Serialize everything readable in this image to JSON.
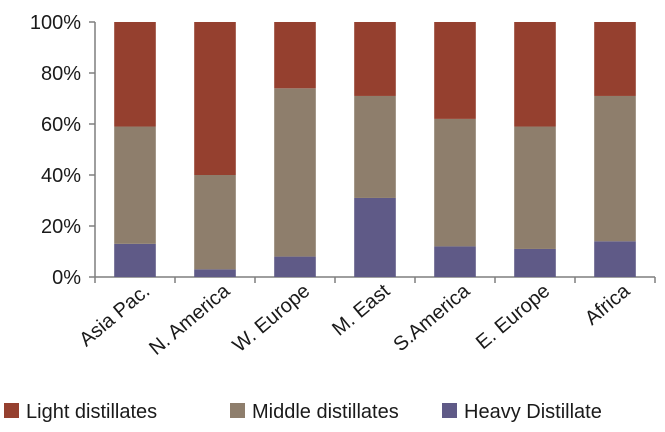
{
  "chart_data": {
    "type": "bar",
    "stacked": true,
    "categories": [
      "Asia Pac.",
      "N. America",
      "W. Europe",
      "M. East",
      "S.America",
      "E. Europe",
      "Africa"
    ],
    "series": [
      {
        "name": "Heavy Distillate",
        "color": "#5f5a87",
        "values": [
          13,
          3,
          8,
          31,
          12,
          11,
          14
        ]
      },
      {
        "name": "Middle distillates",
        "color": "#8e7e6c",
        "values": [
          46,
          37,
          66,
          40,
          50,
          48,
          57
        ]
      },
      {
        "name": "Light distillates",
        "color": "#95402f",
        "values": [
          41,
          60,
          26,
          29,
          38,
          41,
          29
        ]
      }
    ],
    "yticks": [
      "0%",
      "20%",
      "40%",
      "60%",
      "80%",
      "100%"
    ],
    "ylim": [
      0,
      100
    ],
    "legend": {
      "position": "bottom",
      "order": [
        "Light distillates",
        "Middle distillates",
        "Heavy Distillate"
      ]
    },
    "grid": false
  }
}
